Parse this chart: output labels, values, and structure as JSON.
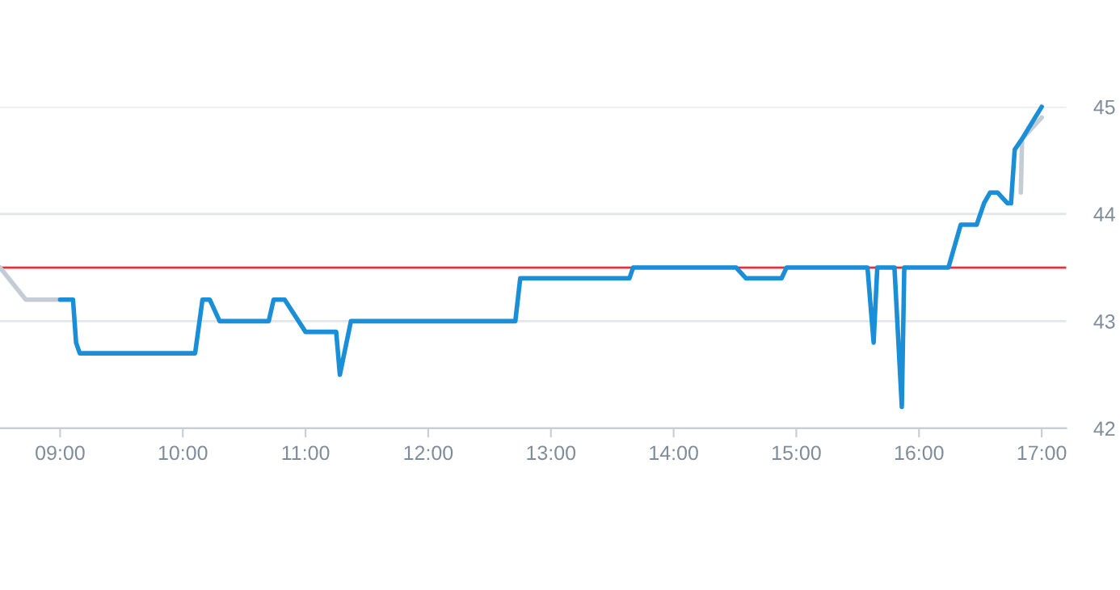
{
  "chart_data": {
    "type": "line",
    "x": [
      9.0,
      9.105,
      9.13,
      9.16,
      10.1,
      10.16,
      10.22,
      10.3,
      10.7,
      10.74,
      10.83,
      11.0,
      11.25,
      11.28,
      11.37,
      12.71,
      12.75,
      13.64,
      13.67,
      14.51,
      14.59,
      14.88,
      14.92,
      15.58,
      15.63,
      15.66,
      15.8,
      15.86,
      15.88,
      16.24,
      16.34,
      16.47,
      16.53,
      16.58,
      16.64,
      16.72,
      16.75,
      16.78,
      16.84,
      17.0
    ],
    "series": [
      {
        "color": "#c4ccd6",
        "x": [
          8.51,
          8.72,
          9.0
        ],
        "values": [
          43.5,
          43.2,
          43.2
        ]
      },
      {
        "color": "#c4ccd6",
        "x": [
          16.83,
          16.84,
          17.0
        ],
        "values": [
          44.2,
          44.7,
          44.9
        ]
      },
      {
        "color": "#1a8fd8",
        "values": [
          43.2,
          43.2,
          42.8,
          42.7,
          42.7,
          43.2,
          43.2,
          43.0,
          43.0,
          43.2,
          43.2,
          42.9,
          42.9,
          42.5,
          43.0,
          43.0,
          43.4,
          43.4,
          43.5,
          43.5,
          43.4,
          43.4,
          43.5,
          43.5,
          42.8,
          43.5,
          43.5,
          42.2,
          43.5,
          43.5,
          43.9,
          43.9,
          44.1,
          44.2,
          44.2,
          44.1,
          44.1,
          44.6,
          44.7,
          45.0
        ]
      }
    ],
    "xlim": [
      8.51,
      17.2
    ],
    "ylim": [
      42,
      45
    ],
    "xticks": [
      {
        "value": 9,
        "label": "09:00"
      },
      {
        "value": 10,
        "label": "10:00"
      },
      {
        "value": 11,
        "label": "11:00"
      },
      {
        "value": 12,
        "label": "12:00"
      },
      {
        "value": 13,
        "label": "13:00"
      },
      {
        "value": 14,
        "label": "14:00"
      },
      {
        "value": 15,
        "label": "15:00"
      },
      {
        "value": 16,
        "label": "16:00"
      },
      {
        "value": 17,
        "label": "17:00"
      }
    ],
    "yticks": [
      42,
      43,
      44,
      45
    ],
    "ref_lines": [
      {
        "axis": "y",
        "value": 43.5,
        "color": "#d9363e"
      }
    ],
    "grid": "y",
    "legend": false,
    "marker": "none",
    "line_style": "solid"
  }
}
